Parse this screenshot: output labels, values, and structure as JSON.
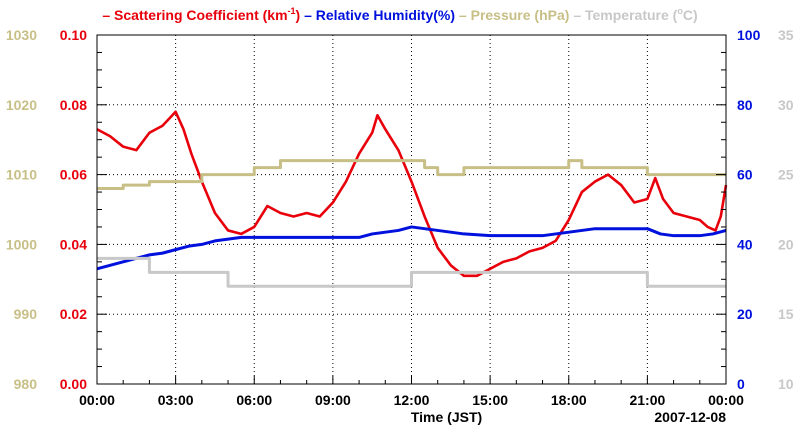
{
  "chart_data": {
    "type": "line",
    "title_parts": [
      {
        "dash": "–",
        "label": "Scattering Coefficient (km",
        "sup": "-1",
        "tail": ")",
        "color": "#e8000b"
      },
      {
        "dash": "–",
        "label": "Relative Humidity(%)",
        "color": "#0011dd"
      },
      {
        "dash": "–",
        "label": "Pressure (hPa)",
        "color": "#c8bf86"
      },
      {
        "dash": "–",
        "label": "Temperature (",
        "sup": "o",
        "tail": "C)",
        "color": "#c8c8c8"
      }
    ],
    "xlabel": "Time (JST)",
    "date_label": "2007-12-08",
    "x_unit": "hours",
    "xlim": [
      0,
      24
    ],
    "x_ticks": [
      0,
      3,
      6,
      9,
      12,
      15,
      18,
      21,
      24
    ],
    "x_tick_labels": [
      "00:00",
      "03:00",
      "06:00",
      "09:00",
      "12:00",
      "15:00",
      "18:00",
      "21:00",
      "00:00"
    ],
    "grid": true,
    "axes": {
      "pressure": {
        "side": "left-outer",
        "lim": [
          980,
          1030
        ],
        "ticks": [
          980,
          990,
          1000,
          1010,
          1020,
          1030
        ],
        "tick_labels": [
          "980",
          "990",
          "1000",
          "1010",
          "1020",
          "1030"
        ],
        "color": "#c8bf86"
      },
      "scattering": {
        "side": "left-inner",
        "lim": [
          0,
          0.1
        ],
        "ticks": [
          0,
          0.02,
          0.04,
          0.06,
          0.08,
          0.1
        ],
        "tick_labels": [
          "0.00",
          "0.02",
          "0.04",
          "0.06",
          "0.08",
          "0.10"
        ],
        "color": "#e8000b"
      },
      "humidity": {
        "side": "right-inner",
        "lim": [
          0,
          100
        ],
        "ticks": [
          0,
          20,
          40,
          60,
          80,
          100
        ],
        "tick_labels": [
          "0",
          "20",
          "40",
          "60",
          "80",
          "100"
        ],
        "color": "#0011dd"
      },
      "temperature": {
        "side": "right-outer",
        "lim": [
          10,
          35
        ],
        "ticks": [
          10,
          15,
          20,
          25,
          30,
          35
        ],
        "tick_labels": [
          "10",
          "15",
          "20",
          "25",
          "30",
          "35"
        ],
        "color": "#c8c8c8"
      }
    },
    "series": [
      {
        "name": "Scattering Coefficient",
        "axis": "scattering",
        "color": "#e8000b",
        "x": [
          0,
          0.5,
          1.0,
          1.5,
          2.0,
          2.5,
          3.0,
          3.3,
          3.6,
          4.0,
          4.5,
          5.0,
          5.5,
          6.0,
          6.5,
          7.0,
          7.5,
          8.0,
          8.5,
          9.0,
          9.5,
          10.0,
          10.5,
          10.7,
          11.0,
          11.5,
          12.0,
          12.5,
          13.0,
          13.5,
          14.0,
          14.5,
          15.0,
          15.5,
          16.0,
          16.5,
          17.0,
          17.5,
          18.0,
          18.5,
          19.0,
          19.5,
          20.0,
          20.5,
          21.0,
          21.3,
          21.6,
          22.0,
          22.5,
          23.0,
          23.3,
          23.6,
          23.8,
          24.0
        ],
        "y": [
          0.073,
          0.071,
          0.068,
          0.067,
          0.072,
          0.074,
          0.078,
          0.073,
          0.066,
          0.058,
          0.049,
          0.044,
          0.043,
          0.045,
          0.051,
          0.049,
          0.048,
          0.049,
          0.048,
          0.052,
          0.058,
          0.066,
          0.072,
          0.077,
          0.073,
          0.067,
          0.058,
          0.048,
          0.039,
          0.034,
          0.031,
          0.031,
          0.033,
          0.035,
          0.036,
          0.038,
          0.039,
          0.041,
          0.047,
          0.055,
          0.058,
          0.06,
          0.057,
          0.052,
          0.053,
          0.059,
          0.053,
          0.049,
          0.048,
          0.047,
          0.045,
          0.044,
          0.048,
          0.057
        ]
      },
      {
        "name": "Relative Humidity",
        "axis": "humidity",
        "color": "#0011dd",
        "x": [
          0,
          0.5,
          1.0,
          1.5,
          2.0,
          2.5,
          3.0,
          3.5,
          4.0,
          4.5,
          5.0,
          5.5,
          6.0,
          7.0,
          8.0,
          9.0,
          10.0,
          10.5,
          11.0,
          11.5,
          12.0,
          12.5,
          13.0,
          14.0,
          15.0,
          16.0,
          17.0,
          17.5,
          18.0,
          18.5,
          19.0,
          20.0,
          21.0,
          21.5,
          22.0,
          23.0,
          23.5,
          24.0
        ],
        "y": [
          33,
          34,
          35,
          36,
          37,
          37.5,
          38.5,
          39.5,
          40,
          41,
          41.5,
          42,
          42,
          42,
          42,
          42,
          42,
          43,
          43.5,
          44,
          45,
          44.5,
          44,
          43,
          42.5,
          42.5,
          42.5,
          43,
          43.5,
          44,
          44.5,
          44.5,
          44.5,
          43,
          42.5,
          42.5,
          43,
          44
        ]
      },
      {
        "name": "Pressure",
        "axis": "pressure",
        "color": "#c8bf86",
        "step": true,
        "x": [
          0,
          1,
          2,
          3,
          4,
          5,
          6,
          7,
          8,
          9,
          10,
          11,
          12,
          12.5,
          13,
          14,
          15,
          16,
          17,
          18,
          18.5,
          19,
          20,
          21,
          22,
          23,
          24
        ],
        "y": [
          1008,
          1008.5,
          1009,
          1009,
          1010,
          1010,
          1011,
          1012,
          1012,
          1012,
          1012,
          1012,
          1012,
          1011,
          1010,
          1011,
          1011,
          1011,
          1011,
          1012,
          1011,
          1011,
          1011,
          1010,
          1010,
          1010,
          1010
        ]
      },
      {
        "name": "Temperature",
        "axis": "temperature",
        "color": "#c8c8c8",
        "step": true,
        "x": [
          0,
          2,
          5,
          9,
          12,
          17,
          21,
          24
        ],
        "y": [
          19,
          18,
          17,
          17,
          18,
          18,
          17,
          17
        ]
      }
    ]
  }
}
